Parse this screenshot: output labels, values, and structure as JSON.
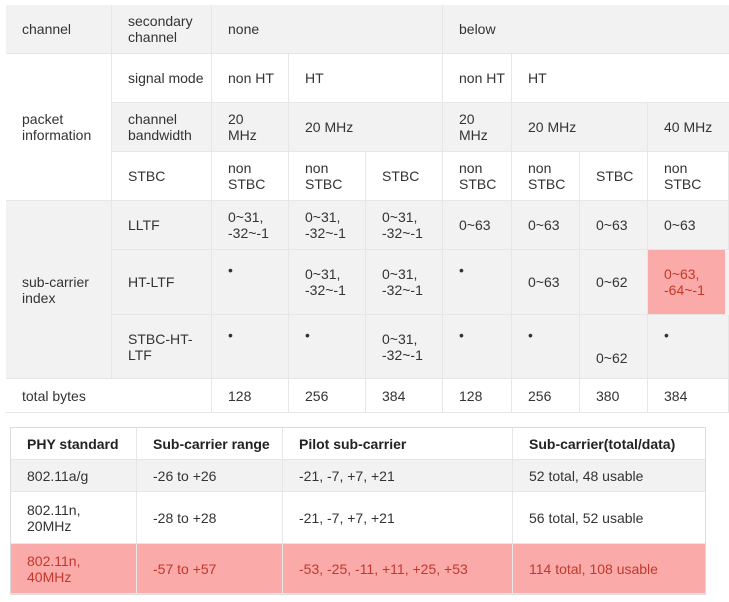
{
  "table1": {
    "channel_label": "channel",
    "secondary_channel_label": "secondary channel",
    "secondary_none": "none",
    "secondary_below": "below",
    "packet_information_label": "packet information",
    "signal_mode_label": "signal mode",
    "channel_bandwidth_label": "channel bandwidth",
    "stbc_label": "STBC",
    "sub_carrier_index_label": "sub-carrier index",
    "lltf_label": "LLTF",
    "htltf_label": "HT-LTF",
    "stbc_htltf_label": "STBC-HT-LTF",
    "total_bytes_label": "total bytes",
    "signal_modes": [
      "non HT",
      "HT",
      "non HT",
      "HT"
    ],
    "bandwidths": [
      "20 MHz",
      "20 MHz",
      "20 MHz",
      "20 MHz",
      "40 MHz"
    ],
    "stbc_values": [
      "non STBC",
      "non STBC",
      "STBC",
      "non STBC",
      "non STBC",
      "STBC",
      "non STBC"
    ],
    "lltf_values": [
      "0~31, -32~-1",
      "0~31, -32~-1",
      "0~31, -32~-1",
      "0~63",
      "0~63",
      "0~63",
      "0~63"
    ],
    "htltf_values": [
      "•",
      "0~31, -32~-1",
      "0~31, -32~-1",
      "•",
      "0~63",
      "0~62",
      "0~63, -64~-1"
    ],
    "stbc_htltf_values": [
      "•",
      "•",
      "0~31, -32~-1",
      "•",
      "•",
      "0~62",
      "•"
    ],
    "total_bytes_values": [
      "128",
      "256",
      "384",
      "128",
      "256",
      "380",
      "384"
    ]
  },
  "table2": {
    "headers": [
      "PHY standard",
      "Sub-carrier range",
      "Pilot sub-carrier",
      "Sub-carrier(total/data)"
    ],
    "rows": [
      [
        "802.11a/g",
        "-26 to +26",
        "-21, -7, +7, +21",
        "52 total, 48 usable"
      ],
      [
        "802.11n, 20MHz",
        "-28 to +28",
        "-21, -7, +7, +21",
        "56 total, 52 usable"
      ],
      [
        "802.11n, 40MHz",
        "-57 to +57",
        "-53, -25, -11, +11, +25, +53",
        "114 total, 108 usable"
      ]
    ]
  },
  "colors": {
    "highlight": "#fbaaaa",
    "highlight_text": "#c0392b",
    "header_gray": "#f2f2f2"
  }
}
